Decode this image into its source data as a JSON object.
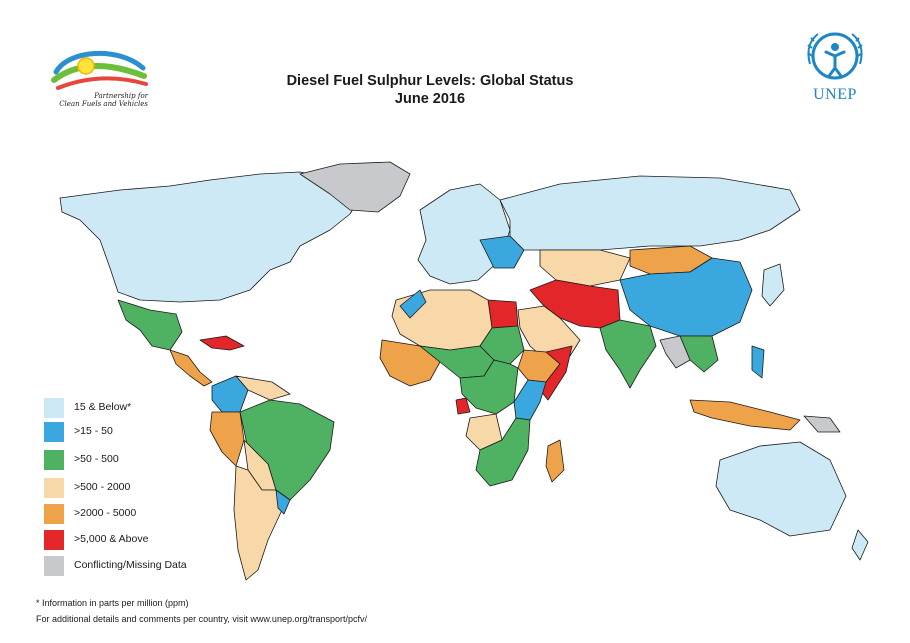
{
  "header": {
    "partner_logo_text": [
      "Partnership for",
      "Clean Fuels and Vehicles"
    ],
    "title": "Diesel Fuel Sulphur Levels: Global Status",
    "subtitle": "June 2016",
    "org_logo_text": "UNEP"
  },
  "legend": {
    "items": [
      {
        "label": "15 & Below*",
        "color": "#cde9f5"
      },
      {
        "label": ">15 - 50",
        "color": "#3aa8df"
      },
      {
        "label": ">50 - 500",
        "color": "#4fb262"
      },
      {
        "label": ">500 - 2000",
        "color": "#f8d8a8"
      },
      {
        "label": ">2000 - 5000",
        "color": "#eea24a"
      },
      {
        "label": ">5,000 & Above",
        "color": "#e3262a"
      },
      {
        "label": "Conflicting/Missing Data",
        "color": "#c8c9cc"
      }
    ]
  },
  "footnotes": {
    "units": "* Information in parts per million (ppm)",
    "details": "For additional details and comments per country, visit www.unep.org/transport/pcfv/"
  },
  "colors": {
    "ocean": "#ffffff",
    "border": "#1a1a1a",
    "unep_blue": "#1d86c6"
  },
  "icons": [
    "pcfv-logo-icon",
    "unep-emblem-icon"
  ]
}
